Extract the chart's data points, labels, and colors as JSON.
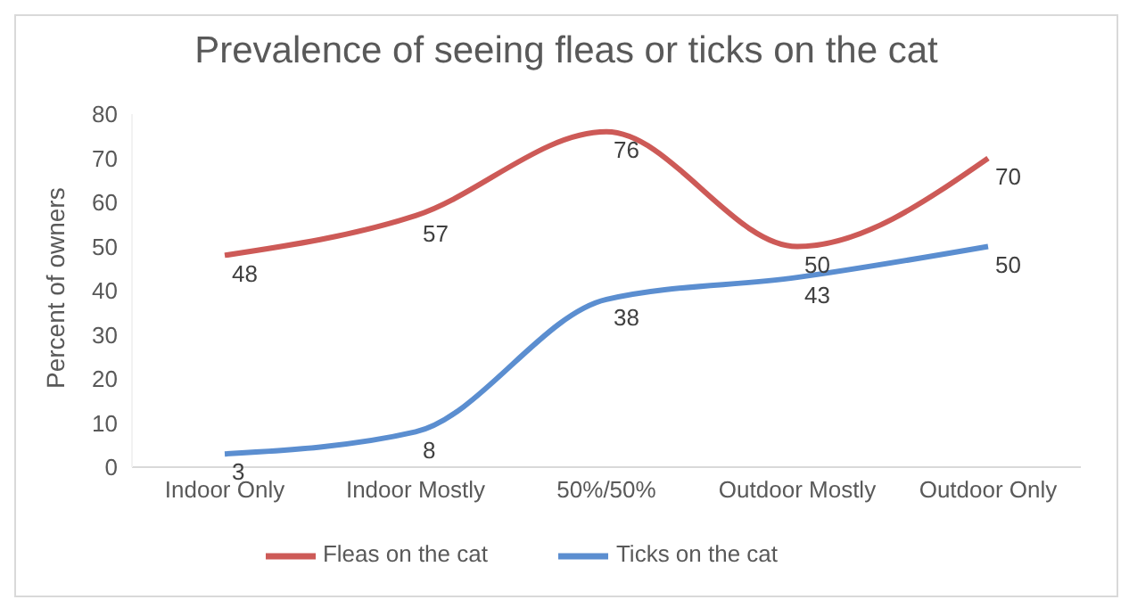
{
  "chart_data": {
    "type": "line",
    "title": "Prevalence of seeing fleas or ticks on the cat",
    "ylabel": "Percent of owners",
    "categories": [
      "Indoor Only",
      "Indoor Mostly",
      "50%/50%",
      "Outdoor Mostly",
      "Outdoor Only"
    ],
    "series": [
      {
        "name": "Ticks on the cat",
        "color": "#5b8ed0",
        "values": [
          3,
          8,
          38,
          43,
          50
        ]
      },
      {
        "name": "Fleas on the cat",
        "color": "#cd5a57",
        "values": [
          48,
          57,
          76,
          50,
          70
        ]
      }
    ],
    "ylim": [
      0,
      80
    ],
    "yticks": [
      0,
      10,
      20,
      30,
      40,
      50,
      60,
      70,
      80
    ],
    "grid": false,
    "legend": "bottom",
    "marker": "none",
    "line_style": "solid",
    "data_labels": true
  }
}
